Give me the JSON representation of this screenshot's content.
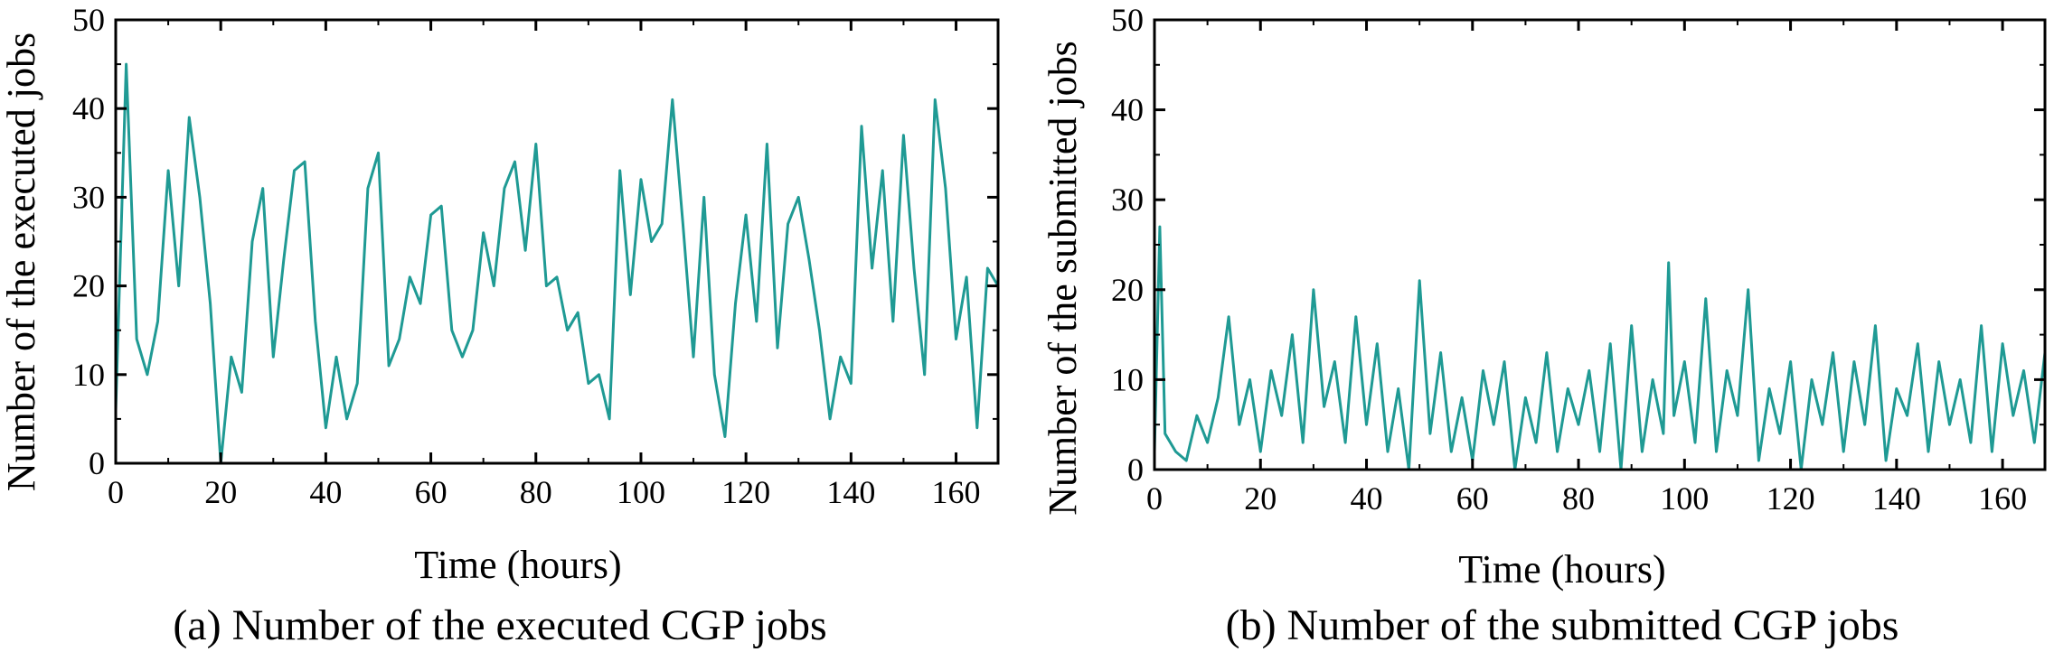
{
  "colors": {
    "series": "#1f9a94",
    "axis": "#000000"
  },
  "chart_data": [
    {
      "type": "line",
      "title": "",
      "caption": "(a) Number of the executed CGP jobs",
      "xlabel": "Time (hours)",
      "ylabel": "Number of the executed jobs",
      "xlim": [
        0,
        168
      ],
      "ylim": [
        0,
        50
      ],
      "xticks": [
        "0",
        "20",
        "40",
        "60",
        "80",
        "100",
        "120",
        "140",
        "160"
      ],
      "yticks": [
        "0",
        "10",
        "20",
        "30",
        "40",
        "50"
      ],
      "grid": false,
      "legend": "none",
      "series": [
        {
          "x": [
            0,
            2,
            4,
            6,
            8,
            10,
            12,
            14,
            16,
            18,
            20,
            22,
            24,
            26,
            28,
            30,
            32,
            34,
            36,
            38,
            40,
            42,
            44,
            46,
            48,
            50,
            52,
            54,
            56,
            58,
            60,
            62,
            64,
            66,
            68,
            70,
            72,
            74,
            76,
            78,
            80,
            82,
            84,
            86,
            88,
            90,
            92,
            94,
            96,
            98,
            100,
            102,
            104,
            106,
            108,
            110,
            112,
            114,
            116,
            118,
            120,
            122,
            124,
            126,
            128,
            130,
            132,
            134,
            136,
            138,
            140,
            142,
            144,
            146,
            148,
            150,
            152,
            154,
            156,
            158,
            160,
            162,
            164,
            166,
            168
          ],
          "y": [
            6,
            45,
            14,
            10,
            16,
            33,
            20,
            39,
            30,
            18,
            0,
            12,
            8,
            25,
            31,
            12,
            23,
            33,
            34,
            16,
            4,
            12,
            5,
            9,
            31,
            35,
            11,
            14,
            21,
            18,
            28,
            29,
            15,
            12,
            15,
            26,
            20,
            31,
            34,
            24,
            36,
            20,
            21,
            15,
            17,
            9,
            10,
            5,
            33,
            19,
            32,
            25,
            27,
            41,
            27,
            12,
            30,
            10,
            3,
            18,
            28,
            16,
            36,
            13,
            27,
            30,
            23,
            15,
            5,
            12,
            9,
            38,
            22,
            33,
            16,
            37,
            22,
            10,
            41,
            31,
            14,
            21,
            4,
            22,
            20
          ]
        }
      ]
    },
    {
      "type": "line",
      "title": "",
      "caption": "(b) Number of the submitted CGP jobs",
      "xlabel": "Time (hours)",
      "ylabel": "Number of the submitted jobs",
      "xlim": [
        0,
        168
      ],
      "ylim": [
        0,
        50
      ],
      "xticks": [
        "0",
        "20",
        "40",
        "60",
        "80",
        "100",
        "120",
        "140",
        "160"
      ],
      "yticks": [
        "0",
        "10",
        "20",
        "30",
        "40",
        "50"
      ],
      "grid": false,
      "legend": "none",
      "series": [
        {
          "x": [
            0,
            1,
            2,
            4,
            6,
            8,
            10,
            12,
            14,
            16,
            18,
            20,
            22,
            24,
            26,
            28,
            30,
            32,
            34,
            36,
            38,
            40,
            42,
            44,
            46,
            48,
            50,
            52,
            54,
            56,
            58,
            60,
            62,
            64,
            66,
            68,
            70,
            72,
            74,
            76,
            78,
            80,
            82,
            84,
            86,
            88,
            90,
            92,
            94,
            96,
            97,
            98,
            100,
            102,
            104,
            106,
            108,
            110,
            112,
            114,
            116,
            118,
            120,
            122,
            124,
            126,
            128,
            130,
            132,
            134,
            136,
            138,
            140,
            142,
            144,
            146,
            148,
            150,
            152,
            154,
            156,
            158,
            160,
            162,
            164,
            166,
            168
          ],
          "y": [
            2,
            27,
            4,
            2,
            1,
            6,
            3,
            8,
            17,
            5,
            10,
            2,
            11,
            6,
            15,
            3,
            20,
            7,
            12,
            3,
            17,
            5,
            14,
            2,
            9,
            0,
            21,
            4,
            13,
            2,
            8,
            1,
            11,
            5,
            12,
            0,
            8,
            3,
            13,
            2,
            9,
            5,
            11,
            2,
            14,
            0,
            16,
            2,
            10,
            4,
            23,
            6,
            12,
            3,
            19,
            2,
            11,
            6,
            20,
            1,
            9,
            4,
            12,
            0,
            10,
            5,
            13,
            2,
            12,
            5,
            16,
            1,
            9,
            6,
            14,
            2,
            12,
            5,
            10,
            3,
            16,
            2,
            14,
            6,
            11,
            3,
            13
          ]
        }
      ]
    }
  ]
}
